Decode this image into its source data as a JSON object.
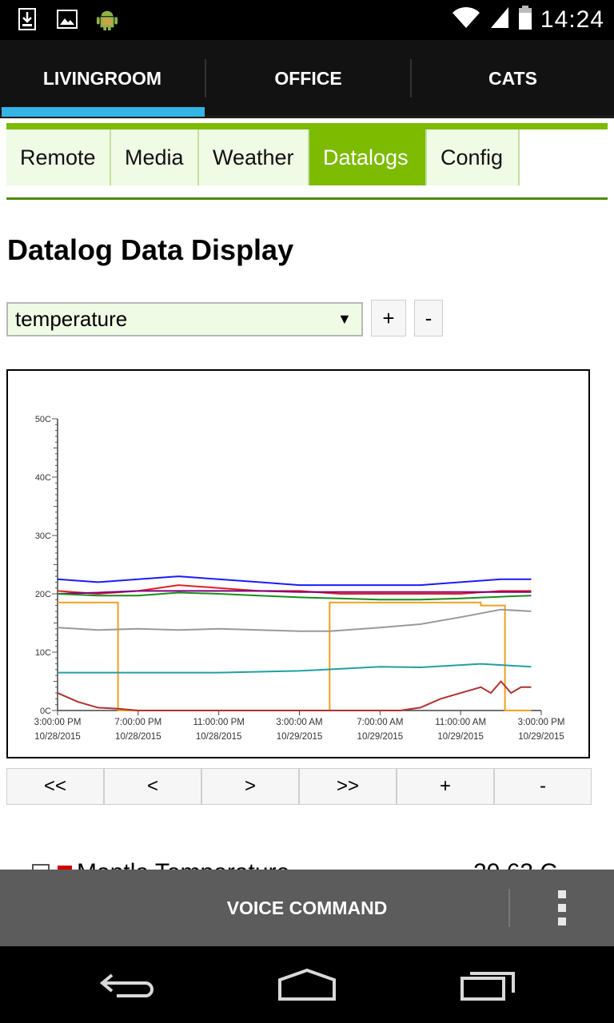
{
  "status_bar": {
    "icons_left": [
      "download-icon",
      "image-icon",
      "android-icon"
    ],
    "icons_right": [
      "wifi-icon",
      "signal-icon",
      "battery-icon"
    ],
    "time": "14:24"
  },
  "room_tabs": [
    {
      "label": "LIVINGROOM",
      "selected": true
    },
    {
      "label": "OFFICE",
      "selected": false
    },
    {
      "label": "CATS",
      "selected": false
    }
  ],
  "sub_tabs": [
    {
      "label": "Remote",
      "active": false
    },
    {
      "label": "Media",
      "active": false
    },
    {
      "label": "Weather",
      "active": false
    },
    {
      "label": "Datalogs",
      "active": true
    },
    {
      "label": "Config",
      "active": false
    }
  ],
  "page_title": "Datalog Data Display",
  "sensor_select": {
    "value": "temperature",
    "plus_label": "+",
    "minus_label": "-"
  },
  "chart_nav": {
    "first_label": "<<",
    "prev_label": "<",
    "next_label": ">",
    "last_label": ">>",
    "zoom_in_label": "+",
    "zoom_out_label": "-"
  },
  "legend_partial": {
    "label": "Mantle Temperature",
    "value": "20.63 C",
    "swatch_color": "#d00000"
  },
  "voice_bar": {
    "label": "VOICE COMMAND"
  },
  "colors": {
    "accent_green": "#7cbb00",
    "tab_indicator": "#33b5e5"
  },
  "chart_data": {
    "type": "line",
    "y_ticks": [
      "0C",
      "10C",
      "20C",
      "30C",
      "40C",
      "50C"
    ],
    "ylim": [
      0,
      50
    ],
    "xlim": [
      0,
      24
    ],
    "x_ticks": [
      {
        "time": "3:00:00 PM",
        "date": "10/28/2015"
      },
      {
        "time": "7:00:00 PM",
        "date": "10/28/2015"
      },
      {
        "time": "11:00:00 PM",
        "date": "10/28/2015"
      },
      {
        "time": "3:00:00 AM",
        "date": "10/29/2015"
      },
      {
        "time": "7:00:00 AM",
        "date": "10/29/2015"
      },
      {
        "time": "11:00:00 AM",
        "date": "10/29/2015"
      },
      {
        "time": "3:00:00 PM",
        "date": "10/29/2015"
      }
    ],
    "x_unit": "hours after 3:00:00 PM 10/28/2015",
    "series": [
      {
        "color": "#1a1aff",
        "points": [
          [
            0,
            22.5
          ],
          [
            2,
            22
          ],
          [
            4,
            22.5
          ],
          [
            6,
            23
          ],
          [
            8,
            22.5
          ],
          [
            10,
            22
          ],
          [
            12,
            21.5
          ],
          [
            14,
            21.5
          ],
          [
            16,
            21.5
          ],
          [
            18,
            21.5
          ],
          [
            20,
            22
          ],
          [
            22,
            22.5
          ],
          [
            23.5,
            22.5
          ]
        ]
      },
      {
        "color": "#e02020",
        "points": [
          [
            0,
            20.5
          ],
          [
            2,
            20
          ],
          [
            4,
            20.5
          ],
          [
            6,
            21.5
          ],
          [
            8,
            21
          ],
          [
            10,
            20.5
          ],
          [
            12,
            20.5
          ],
          [
            14,
            20
          ],
          [
            16,
            20
          ],
          [
            18,
            20
          ],
          [
            20,
            20
          ],
          [
            22,
            20.5
          ],
          [
            23.5,
            20.5
          ]
        ]
      },
      {
        "color": "#800080",
        "points": [
          [
            0,
            20
          ],
          [
            2,
            20.2
          ],
          [
            4,
            20.5
          ],
          [
            6,
            20.5
          ],
          [
            8,
            20.5
          ],
          [
            10,
            20.5
          ],
          [
            12,
            20.3
          ],
          [
            14,
            20.3
          ],
          [
            16,
            20.3
          ],
          [
            18,
            20.3
          ],
          [
            20,
            20.3
          ],
          [
            22,
            20.3
          ],
          [
            23.5,
            20.3
          ]
        ]
      },
      {
        "color": "#1a8c1a",
        "points": [
          [
            0,
            20
          ],
          [
            2,
            19.7
          ],
          [
            4,
            19.7
          ],
          [
            6,
            20.2
          ],
          [
            8,
            20
          ],
          [
            10,
            19.7
          ],
          [
            12,
            19.4
          ],
          [
            14,
            19.2
          ],
          [
            16,
            19
          ],
          [
            18,
            19
          ],
          [
            20,
            19.2
          ],
          [
            22,
            19.5
          ],
          [
            23.5,
            19.7
          ]
        ]
      },
      {
        "color": "#f0a020",
        "points": [
          [
            0,
            18.5
          ],
          [
            3,
            18.5
          ],
          [
            3,
            0
          ],
          [
            13.5,
            0
          ],
          [
            13.5,
            18.5
          ],
          [
            21,
            18.5
          ],
          [
            21,
            18
          ],
          [
            22.2,
            18
          ],
          [
            22.2,
            0
          ],
          [
            23.5,
            0
          ]
        ]
      },
      {
        "color": "#999999",
        "points": [
          [
            0,
            14.2
          ],
          [
            2,
            13.8
          ],
          [
            4,
            14
          ],
          [
            6,
            13.8
          ],
          [
            8,
            14
          ],
          [
            10,
            13.8
          ],
          [
            12,
            13.6
          ],
          [
            13.5,
            13.6
          ],
          [
            16,
            14.2
          ],
          [
            18,
            14.8
          ],
          [
            20,
            16
          ],
          [
            22,
            17.3
          ],
          [
            23.5,
            17
          ]
        ]
      },
      {
        "color": "#20a0a0",
        "points": [
          [
            0,
            6.5
          ],
          [
            4,
            6.5
          ],
          [
            8,
            6.5
          ],
          [
            12,
            6.8
          ],
          [
            16,
            7.5
          ],
          [
            18,
            7.4
          ],
          [
            20,
            7.8
          ],
          [
            21,
            8
          ],
          [
            23.5,
            7.5
          ]
        ]
      },
      {
        "color": "#b03030",
        "points": [
          [
            0,
            3
          ],
          [
            1,
            1.5
          ],
          [
            2,
            0.5
          ],
          [
            3,
            0.3
          ],
          [
            4,
            0
          ],
          [
            12,
            0
          ],
          [
            17,
            0
          ],
          [
            18,
            0.5
          ],
          [
            19,
            2
          ],
          [
            20,
            3
          ],
          [
            21,
            4
          ],
          [
            21.5,
            3
          ],
          [
            22,
            5
          ],
          [
            22.5,
            3
          ],
          [
            23,
            4
          ],
          [
            23.5,
            4
          ]
        ]
      }
    ]
  }
}
